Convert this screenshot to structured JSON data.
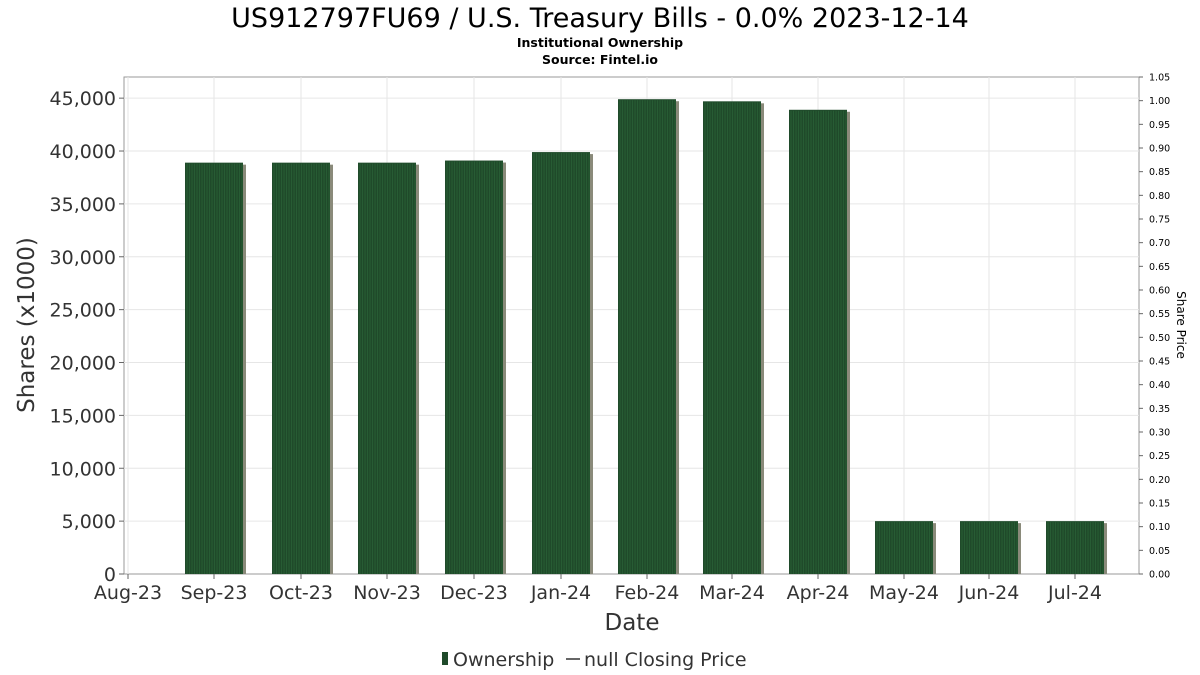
{
  "chart_data": {
    "type": "bar",
    "title": "US912797FU69 / U.S. Treasury Bills - 0.0% 2023-12-14",
    "subtitle": "Institutional Ownership",
    "source": "Source: Fintel.io",
    "xlabel": "Date",
    "ylabel": "Shares (x1000)",
    "y2label": "Share Price",
    "x_tick_labels": [
      "Aug-23",
      "Sep-23",
      "Oct-23",
      "Nov-23",
      "Dec-23",
      "Jan-24",
      "Feb-24",
      "Mar-24",
      "Apr-24",
      "May-24",
      "Jun-24",
      "Jul-24"
    ],
    "categories": [
      "Sep-23",
      "Oct-23",
      "Nov-23",
      "Dec-23",
      "Jan-24",
      "Feb-24",
      "Mar-24",
      "Apr-24",
      "May-24",
      "Jun-24",
      "Jul-24"
    ],
    "series": [
      {
        "name": "Ownership",
        "values": [
          38900,
          38900,
          38900,
          39100,
          39900,
          44900,
          44700,
          43900,
          5000,
          5000,
          5000
        ]
      }
    ],
    "ylim": [
      0,
      47000
    ],
    "y_ticks": [
      0,
      5000,
      10000,
      15000,
      20000,
      25000,
      30000,
      35000,
      40000,
      45000
    ],
    "y_tick_labels": [
      "0",
      "5,000",
      "10,000",
      "15,000",
      "20,000",
      "25,000",
      "30,000",
      "35,000",
      "40,000",
      "45,000"
    ],
    "y2lim": [
      0,
      1.05
    ],
    "y2_tick_labels": [
      "0.00",
      "0.05",
      "0.10",
      "0.15",
      "0.20",
      "0.25",
      "0.30",
      "0.35",
      "0.40",
      "0.45",
      "0.50",
      "0.55",
      "0.60",
      "0.65",
      "0.70",
      "0.75",
      "0.80",
      "0.85",
      "0.90",
      "0.95",
      "1.00",
      "1.05"
    ],
    "grid": true,
    "legend": {
      "placement": "bottom",
      "entries": [
        "Ownership",
        "null Closing Price"
      ]
    },
    "colors": {
      "bar": "#1f4a2a",
      "bar_shadow": "#8a8a7a",
      "grid": "#e6e6e6",
      "frame": "#999999"
    }
  }
}
